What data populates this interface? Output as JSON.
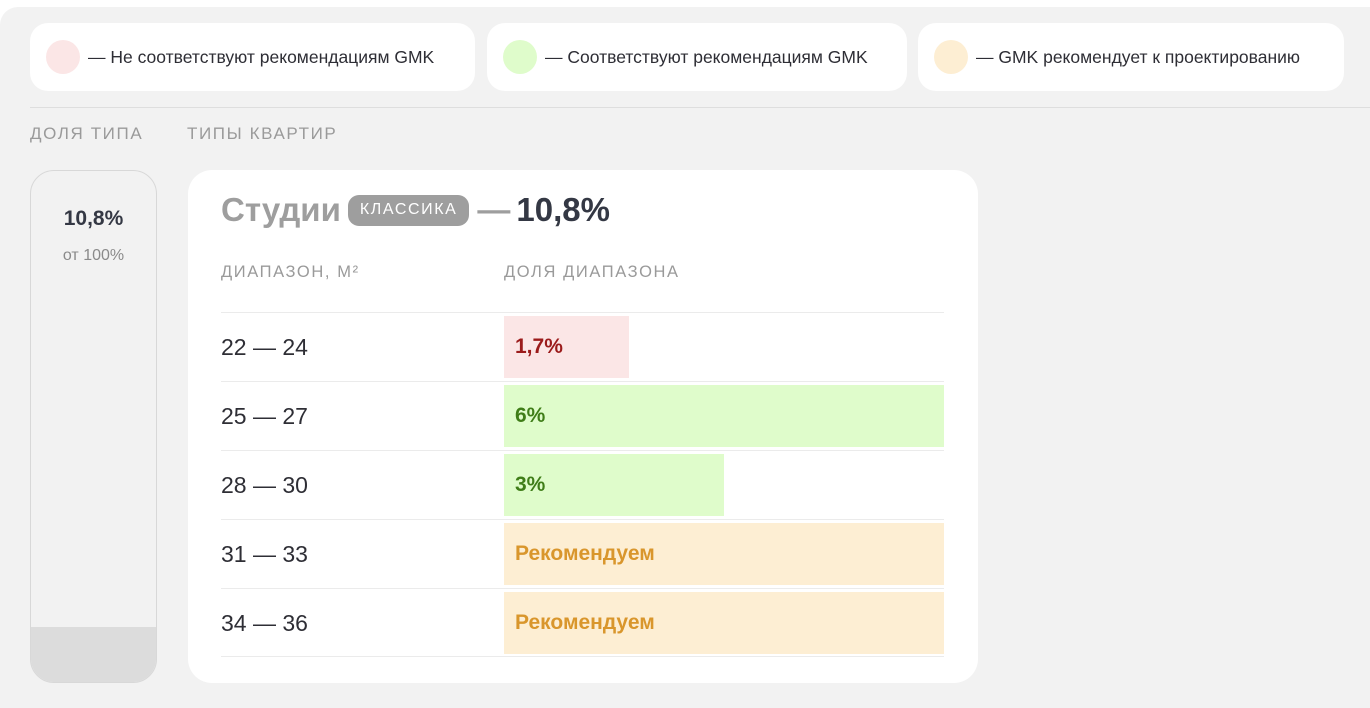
{
  "legend": [
    {
      "text": "— Не соответствуют рекомендациям GMK",
      "color": "#fbe6e6"
    },
    {
      "text": "— Соответствуют рекомендациям GMK",
      "color": "#dffccb"
    },
    {
      "text": "— GMK рекомендует к проектированию",
      "color": "#fdeed3"
    }
  ],
  "columns": {
    "share_label": "ДОЛЯ ТИПА",
    "types_label": "ТИПЫ КВАРТИР"
  },
  "share": {
    "value": "10,8%",
    "sub": "от 100%",
    "fraction": 0.108
  },
  "type_card": {
    "name": "Студии",
    "badge": "КЛАССИКА",
    "dash": "—",
    "percent": "10,8%",
    "headers": {
      "range": "ДИАПАЗОН, М²",
      "share": "ДОЛЯ ДИАПАЗОНА"
    },
    "rows": [
      {
        "range": "22 — 24",
        "label": "1,7%",
        "status": "bad",
        "fill_fraction": 0.283
      },
      {
        "range": "25 — 27",
        "label": "6%",
        "status": "good",
        "fill_fraction": 1.0
      },
      {
        "range": "28 — 30",
        "label": "3%",
        "status": "good",
        "fill_fraction": 0.5
      },
      {
        "range": "31 — 33",
        "label": "Рекомендуем",
        "status": "rec",
        "fill_fraction": 1.0
      },
      {
        "range": "34 — 36",
        "label": "Рекомендуем",
        "status": "rec",
        "fill_fraction": 1.0
      }
    ]
  }
}
